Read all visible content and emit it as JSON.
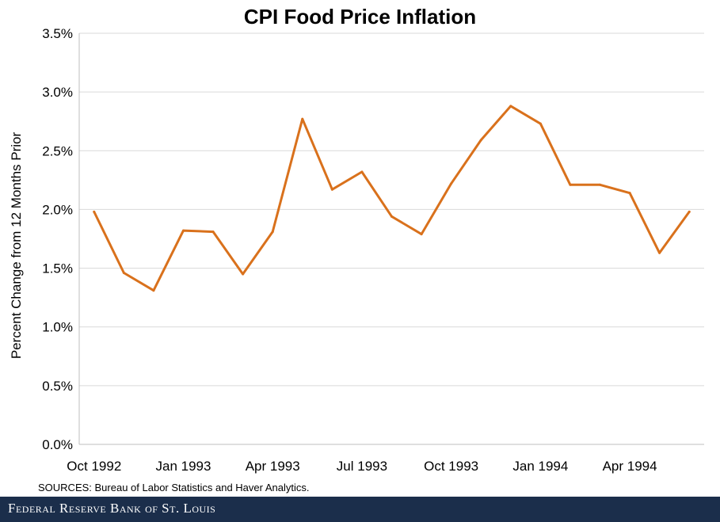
{
  "chart_data": {
    "type": "line",
    "title": "CPI Food Price Inflation",
    "ylabel": "Percent Change from 12 Months Prior",
    "xlabel": "",
    "ylim": [
      0,
      3.5
    ],
    "y_ticks": [
      "0.0%",
      "0.5%",
      "1.0%",
      "1.5%",
      "2.0%",
      "2.5%",
      "3.0%",
      "3.5%"
    ],
    "y_tick_values": [
      0,
      0.5,
      1.0,
      1.5,
      2.0,
      2.5,
      3.0,
      3.5
    ],
    "x_tick_labels": [
      "Oct 1992",
      "Jan 1993",
      "Apr 1993",
      "Jul 1993",
      "Oct 1993",
      "Jan 1994",
      "Apr 1994"
    ],
    "x_tick_dates": [
      "1992-10",
      "1993-01",
      "1993-04",
      "1993-07",
      "1993-10",
      "1994-01",
      "1994-04"
    ],
    "x_range": [
      "1992-10",
      "1994-06"
    ],
    "grid": true,
    "line_color": "#d9711c",
    "series": [
      {
        "x": [
          "1992-10",
          "1992-11",
          "1992-12",
          "1993-01",
          "1993-02",
          "1993-03",
          "1993-04",
          "1993-05",
          "1993-06",
          "1993-07",
          "1993-08",
          "1993-09",
          "1993-10",
          "1993-11",
          "1993-12",
          "1994-01",
          "1994-02",
          "1994-03",
          "1994-04",
          "1994-05",
          "1994-06"
        ],
        "values": [
          1.98,
          1.46,
          1.31,
          1.82,
          1.81,
          1.45,
          1.81,
          2.77,
          2.17,
          2.32,
          1.94,
          1.79,
          2.22,
          2.59,
          2.88,
          2.73,
          2.21,
          2.21,
          2.14,
          1.63,
          1.98
        ]
      }
    ]
  },
  "source_note": "SOURCES: Bureau of Labor Statistics and Haver Analytics.",
  "footer": {
    "brand": "Federal Reserve Bank of St. Louis"
  }
}
